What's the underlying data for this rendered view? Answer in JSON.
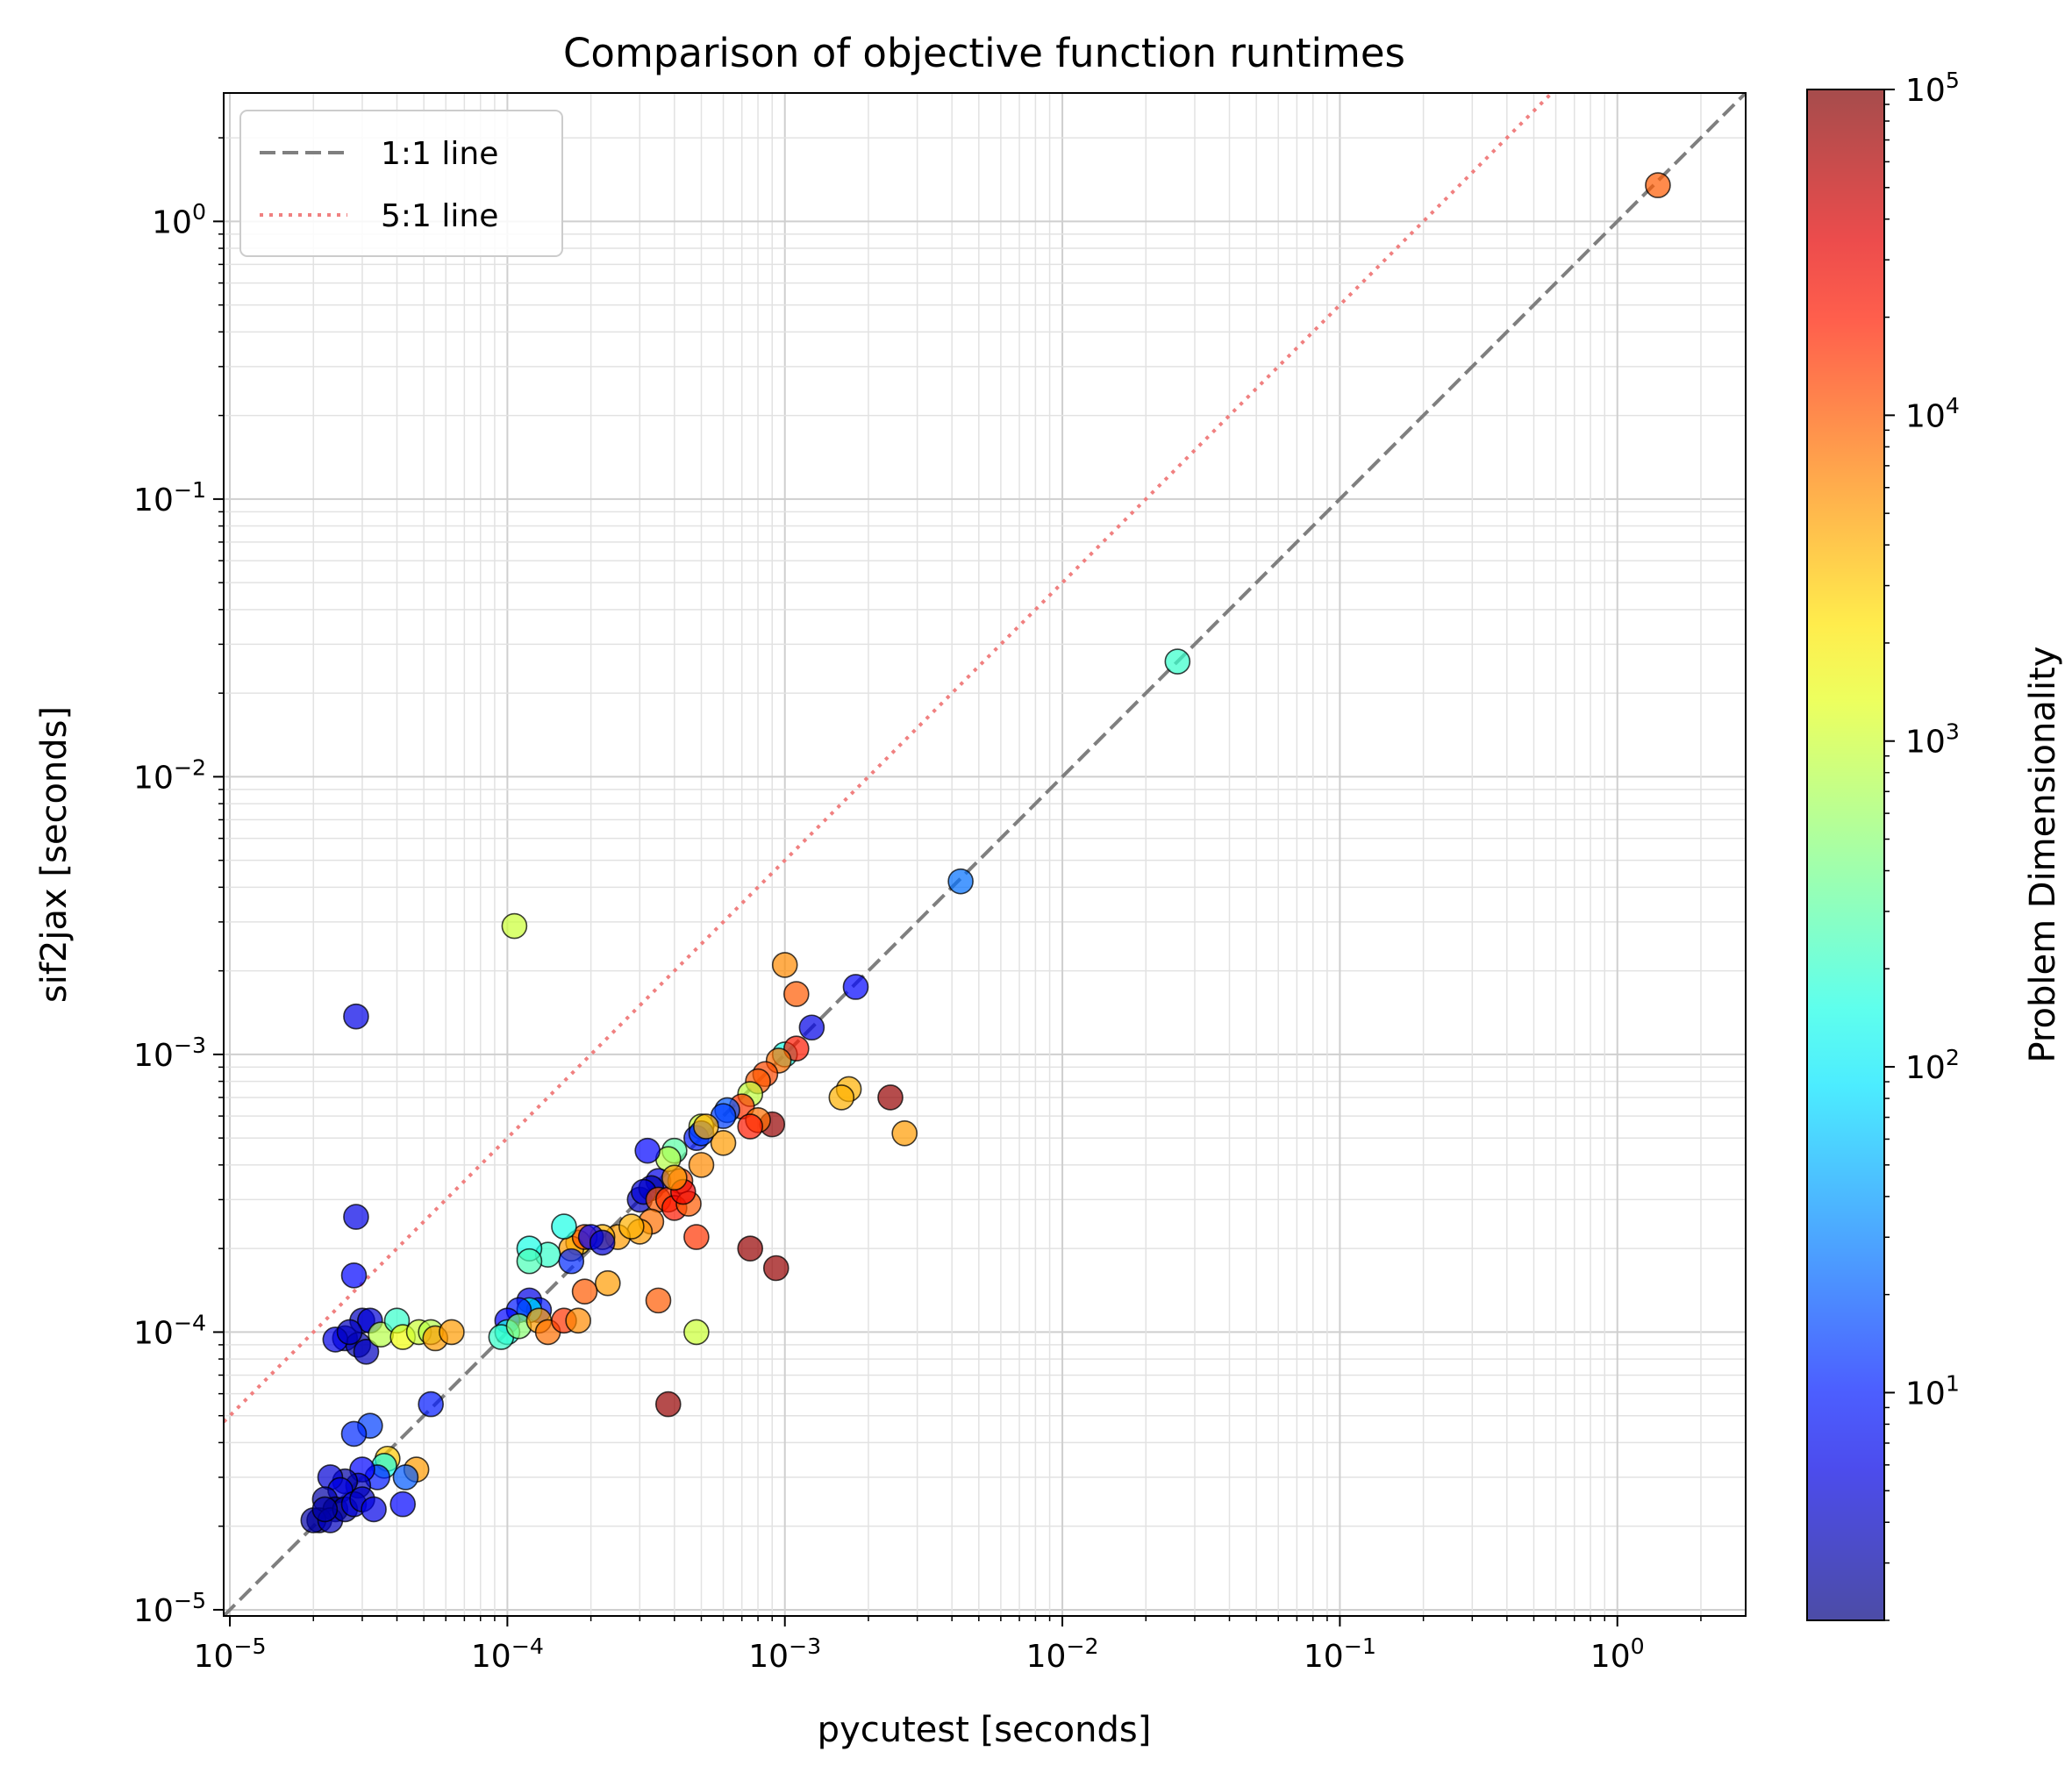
{
  "chart_data": {
    "type": "scatter",
    "title": "Comparison of objective function runtimes",
    "xlabel": "pycutest [seconds]",
    "ylabel": "sif2jax [seconds]",
    "xscale": "log",
    "yscale": "log",
    "xlim": [
      9.5e-06,
      2.9
    ],
    "ylim": [
      9.5e-06,
      2.9
    ],
    "x_ticks": [
      {
        "value": 1e-05,
        "base": "10",
        "exp": "−5"
      },
      {
        "value": 0.0001,
        "base": "10",
        "exp": "−4"
      },
      {
        "value": 0.001,
        "base": "10",
        "exp": "−3"
      },
      {
        "value": 0.01,
        "base": "10",
        "exp": "−2"
      },
      {
        "value": 0.1,
        "base": "10",
        "exp": "−1"
      },
      {
        "value": 1,
        "base": "10",
        "exp": "0"
      }
    ],
    "y_ticks": [
      {
        "value": 1e-05,
        "base": "10",
        "exp": "−5"
      },
      {
        "value": 0.0001,
        "base": "10",
        "exp": "−4"
      },
      {
        "value": 0.001,
        "base": "10",
        "exp": "−3"
      },
      {
        "value": 0.01,
        "base": "10",
        "exp": "−2"
      },
      {
        "value": 0.1,
        "base": "10",
        "exp": "−1"
      },
      {
        "value": 1,
        "base": "10",
        "exp": "0"
      }
    ],
    "grid": "major and minor",
    "legend": {
      "placement": "top-left",
      "entries": [
        {
          "label": "1:1 line",
          "color": "#7f7f7f",
          "style": "dashed",
          "ratio": 1
        },
        {
          "label": "5:1 line",
          "color": "#f08080",
          "style": "dotted",
          "ratio": 5
        }
      ]
    },
    "colorbar": {
      "label": "Problem Dimensionality",
      "scale": "log",
      "range": [
        2,
        100000
      ],
      "colormap": "jet",
      "alpha": 0.7,
      "ticks": [
        {
          "value": 10,
          "base": "10",
          "exp": "1"
        },
        {
          "value": 100,
          "base": "10",
          "exp": "2"
        },
        {
          "value": 1000,
          "base": "10",
          "exp": "3"
        },
        {
          "value": 10000,
          "base": "10",
          "exp": "4"
        },
        {
          "value": 100000,
          "base": "10",
          "exp": "5"
        }
      ]
    },
    "points": [
      [
        1.4,
        1.35,
        10000
      ],
      [
        0.026,
        0.026,
        200
      ],
      [
        0.0043,
        0.0042,
        25
      ],
      [
        0.0018,
        0.00175,
        8
      ],
      [
        0.00125,
        0.00125,
        6
      ],
      [
        0.001,
        0.0021,
        6000
      ],
      [
        0.0011,
        0.00165,
        10000
      ],
      [
        0.001,
        0.001,
        150
      ],
      [
        0.0011,
        0.00105,
        20000
      ],
      [
        0.00095,
        0.00095,
        8000
      ],
      [
        0.0024,
        0.0007,
        80000
      ],
      [
        0.0017,
        0.00075,
        4000
      ],
      [
        0.0016,
        0.0007,
        4000
      ],
      [
        0.0027,
        0.00052,
        5000
      ],
      [
        0.00085,
        0.00085,
        12000
      ],
      [
        0.0008,
        0.0008,
        10000
      ],
      [
        0.00075,
        0.00072,
        900
      ],
      [
        0.0009,
        0.00056,
        80000
      ],
      [
        0.0007,
        0.00065,
        15000
      ],
      [
        0.00062,
        0.00063,
        20
      ],
      [
        0.0006,
        0.0006,
        15
      ],
      [
        0.0008,
        0.00058,
        8000
      ],
      [
        0.00075,
        0.00055,
        20000
      ],
      [
        0.0006,
        0.00048,
        5000
      ],
      [
        0.0005,
        0.00055,
        1000
      ],
      [
        0.00048,
        0.0005,
        10
      ],
      [
        0.0005,
        0.00052,
        15
      ],
      [
        0.00052,
        0.00055,
        4000
      ],
      [
        0.0004,
        0.00045,
        300
      ],
      [
        0.00038,
        0.00042,
        800
      ],
      [
        0.00032,
        0.00045,
        8
      ],
      [
        0.00035,
        0.00035,
        6
      ],
      [
        0.0003,
        0.0003,
        4
      ],
      [
        0.00033,
        0.00033,
        3
      ],
      [
        0.00031,
        0.00032,
        5
      ],
      [
        0.00035,
        0.0003,
        10000
      ],
      [
        0.00042,
        0.00035,
        12000
      ],
      [
        0.00038,
        0.0003,
        15000
      ],
      [
        0.0004,
        0.00028,
        20000
      ],
      [
        0.00045,
        0.00029,
        10000
      ],
      [
        0.00043,
        0.00032,
        30000
      ],
      [
        0.0005,
        0.0004,
        6000
      ],
      [
        0.0004,
        0.00036,
        5000
      ],
      [
        0.00048,
        0.00022,
        15000
      ],
      [
        0.00033,
        0.00025,
        8000
      ],
      [
        0.0003,
        0.00023,
        5000
      ],
      [
        0.00025,
        0.00022,
        5000
      ],
      [
        0.00028,
        0.00024,
        4000
      ],
      [
        0.00022,
        0.00022,
        4000
      ],
      [
        0.00018,
        0.00021,
        3000
      ],
      [
        0.00017,
        0.0002,
        5000
      ],
      [
        0.00019,
        0.00022,
        10000
      ],
      [
        0.0002,
        0.00022,
        8
      ],
      [
        0.00022,
        0.00021,
        5
      ],
      [
        0.00016,
        0.00024,
        150
      ],
      [
        0.00014,
        0.00019,
        200
      ],
      [
        0.00012,
        0.0002,
        150
      ],
      [
        0.00012,
        0.00018,
        250
      ],
      [
        0.00017,
        0.00018,
        12
      ],
      [
        0.00075,
        0.0002,
        80000
      ],
      [
        0.00093,
        0.00017,
        80000
      ],
      [
        0.00023,
        0.00015,
        5000
      ],
      [
        0.00019,
        0.00014,
        10000
      ],
      [
        0.00012,
        0.00013,
        6
      ],
      [
        0.00013,
        0.00012,
        10
      ],
      [
        0.00012,
        0.00012,
        100
      ],
      [
        0.00011,
        0.00012,
        10
      ],
      [
        0.0001,
        0.00011,
        8
      ],
      [
        0.0001,
        0.0001,
        150
      ],
      [
        9.5e-05,
        9.6e-05,
        200
      ],
      [
        0.00011,
        0.000105,
        500
      ],
      [
        0.00013,
        0.00011,
        5000
      ],
      [
        0.00014,
        0.0001,
        8000
      ],
      [
        0.00016,
        0.00011,
        15000
      ],
      [
        0.00018,
        0.00011,
        6000
      ],
      [
        0.00035,
        0.00013,
        10000
      ],
      [
        0.00048,
        0.0001,
        1000
      ],
      [
        0.00038,
        5.5e-05,
        80000
      ],
      [
        0.000106,
        0.0029,
        1000
      ],
      [
        2.85e-05,
        0.00137,
        6
      ],
      [
        2.85e-05,
        0.00026,
        6
      ],
      [
        2.8e-05,
        0.00016,
        8
      ],
      [
        3e-05,
        0.00011,
        4
      ],
      [
        3.2e-05,
        0.00011,
        5
      ],
      [
        2.6e-05,
        9.5e-05,
        5
      ],
      [
        2.9e-05,
        9e-05,
        3
      ],
      [
        3.1e-05,
        8.5e-05,
        4
      ],
      [
        2.4e-05,
        9.4e-05,
        6
      ],
      [
        2.7e-05,
        0.0001,
        4
      ],
      [
        3.5e-05,
        9.8e-05,
        800
      ],
      [
        4e-05,
        0.00011,
        200
      ],
      [
        4.2e-05,
        9.6e-05,
        1500
      ],
      [
        4.8e-05,
        0.0001,
        1000
      ],
      [
        5.3e-05,
        0.0001,
        800
      ],
      [
        5.5e-05,
        9.5e-05,
        5000
      ],
      [
        6.3e-05,
        0.0001,
        5000
      ],
      [
        5.3e-05,
        5.5e-05,
        10
      ],
      [
        3.2e-05,
        4.6e-05,
        15
      ],
      [
        2.8e-05,
        4.3e-05,
        12
      ],
      [
        3.7e-05,
        3.5e-05,
        3000
      ],
      [
        3.6e-05,
        3.3e-05,
        150
      ],
      [
        4.7e-05,
        3.2e-05,
        5000
      ],
      [
        4.3e-05,
        3e-05,
        20
      ],
      [
        3.4e-05,
        3e-05,
        10
      ],
      [
        3e-05,
        3.2e-05,
        8
      ],
      [
        2.9e-05,
        2.8e-05,
        4
      ],
      [
        2.6e-05,
        2.9e-05,
        3
      ],
      [
        2.3e-05,
        3e-05,
        5
      ],
      [
        2.5e-05,
        2.7e-05,
        6
      ],
      [
        2.2e-05,
        2.5e-05,
        3
      ],
      [
        2.4e-05,
        2.3e-05,
        2
      ],
      [
        2.1e-05,
        2.1e-05,
        2
      ],
      [
        2e-05,
        2.1e-05,
        3
      ],
      [
        2.3e-05,
        2.1e-05,
        4
      ],
      [
        2.6e-05,
        2.3e-05,
        3
      ],
      [
        2.8e-05,
        2.4e-05,
        5
      ],
      [
        3e-05,
        2.5e-05,
        4
      ],
      [
        3.3e-05,
        2.3e-05,
        6
      ],
      [
        4.2e-05,
        2.4e-05,
        8
      ],
      [
        2.2e-05,
        2.3e-05,
        3
      ]
    ]
  }
}
